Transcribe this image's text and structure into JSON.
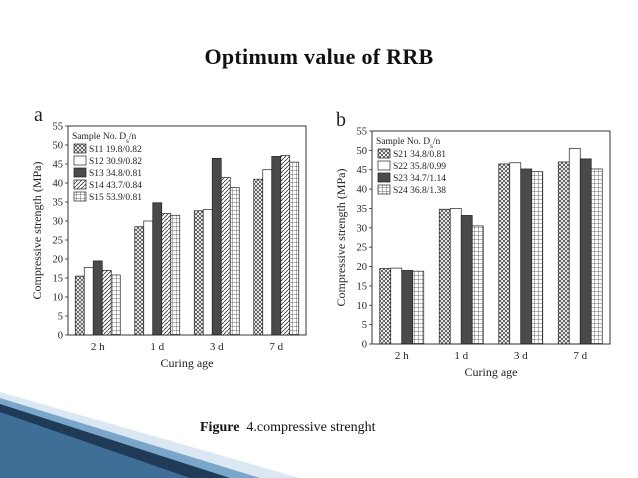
{
  "slide": {
    "title": "Optimum value of RRB",
    "caption_bold": "Figure",
    "caption_text": "4.compressive strenght"
  },
  "chart_data": [
    {
      "type": "bar",
      "panel": "a",
      "ylabel": "Compressive strength (MPa)",
      "xlabel": "Curing age",
      "ylim": [
        0,
        55
      ],
      "yticks": [
        0,
        5,
        10,
        15,
        20,
        25,
        30,
        35,
        40,
        45,
        50,
        55
      ],
      "categories": [
        "2 h",
        "1 d",
        "3 d",
        "7 d"
      ],
      "legend_title": "Sample No. D_s/n",
      "legend_placement": "top-left",
      "series": [
        {
          "name": "S11 19.8/0.82",
          "pattern": "cross",
          "values": [
            15.5,
            28.5,
            32.7,
            41.0
          ]
        },
        {
          "name": "S12 30.9/0.82",
          "pattern": "white",
          "values": [
            17.8,
            30.0,
            33.0,
            43.5
          ]
        },
        {
          "name": "S13 34.8/0.81",
          "pattern": "dark",
          "values": [
            19.5,
            34.8,
            46.5,
            47.0
          ]
        },
        {
          "name": "S14 43.7/0.84",
          "pattern": "diag",
          "values": [
            17.0,
            32.0,
            41.5,
            47.2
          ]
        },
        {
          "name": "S15 53.9/0.81",
          "pattern": "grid",
          "values": [
            15.8,
            31.5,
            38.8,
            45.5
          ]
        }
      ]
    },
    {
      "type": "bar",
      "panel": "b",
      "ylabel": "Compressive strength (MPa)",
      "xlabel": "Curing age",
      "ylim": [
        0,
        55
      ],
      "yticks": [
        0,
        5,
        10,
        15,
        20,
        25,
        30,
        35,
        40,
        45,
        50,
        55
      ],
      "categories": [
        "2 h",
        "1 d",
        "3 d",
        "7 d"
      ],
      "legend_title": "Sample No. D_s/n",
      "legend_placement": "top-left",
      "series": [
        {
          "name": "S21 34.8/0.81",
          "pattern": "cross",
          "values": [
            19.5,
            34.8,
            46.5,
            47.0
          ]
        },
        {
          "name": "S22 35.8/0.99",
          "pattern": "white",
          "values": [
            19.6,
            35.0,
            46.8,
            50.5
          ]
        },
        {
          "name": "S23 34.7/1.14",
          "pattern": "dark",
          "values": [
            19.0,
            33.2,
            45.2,
            47.8
          ]
        },
        {
          "name": "S24 36.8/1.38",
          "pattern": "grid",
          "values": [
            18.8,
            30.5,
            44.5,
            45.2
          ]
        }
      ]
    }
  ],
  "colors": {
    "deco_dark": "#1f3b57",
    "deco_mid": "#4f7fa8",
    "deco_light": "#cfe1ef"
  }
}
